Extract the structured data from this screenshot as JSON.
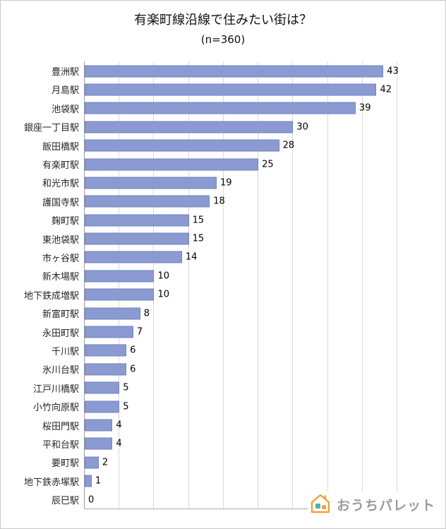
{
  "header": {
    "title": "有楽町線沿線で住みたい街は？",
    "subtitle": "(n=360)"
  },
  "chart_data": {
    "type": "bar",
    "orientation": "horizontal",
    "title": "有楽町線沿線で住みたい街は？",
    "subtitle": "(n=360)",
    "sample_size": 360,
    "categories": [
      "豊洲駅",
      "月島駅",
      "池袋駅",
      "銀座一丁目駅",
      "飯田橋駅",
      "有楽町駅",
      "和光市駅",
      "護国寺駅",
      "麹町駅",
      "東池袋駅",
      "市ヶ谷駅",
      "新木場駅",
      "地下鉄成増駅",
      "新富町駅",
      "永田町駅",
      "千川駅",
      "氷川台駅",
      "江戸川橋駅",
      "小竹向原駅",
      "桜田門駅",
      "平和台駅",
      "要町駅",
      "地下鉄赤塚駅",
      "辰巳駅"
    ],
    "values": [
      43,
      42,
      39,
      30,
      28,
      25,
      19,
      18,
      15,
      15,
      14,
      10,
      10,
      8,
      7,
      6,
      6,
      5,
      5,
      4,
      4,
      2,
      1,
      0
    ],
    "xlim": [
      0,
      45
    ],
    "gridline_step": 5,
    "grid": true,
    "value_labels": true,
    "legend": "none",
    "bar_color": "#8b9ad1",
    "bar_border_color": "#6f83c0"
  },
  "logo": {
    "text": "おうちパレット",
    "icon": "house-icon",
    "text_color": "#9b9b9b",
    "roof_color": "#efa23c",
    "square_teal": "#57b0a5",
    "square_orange": "#efa23c"
  }
}
